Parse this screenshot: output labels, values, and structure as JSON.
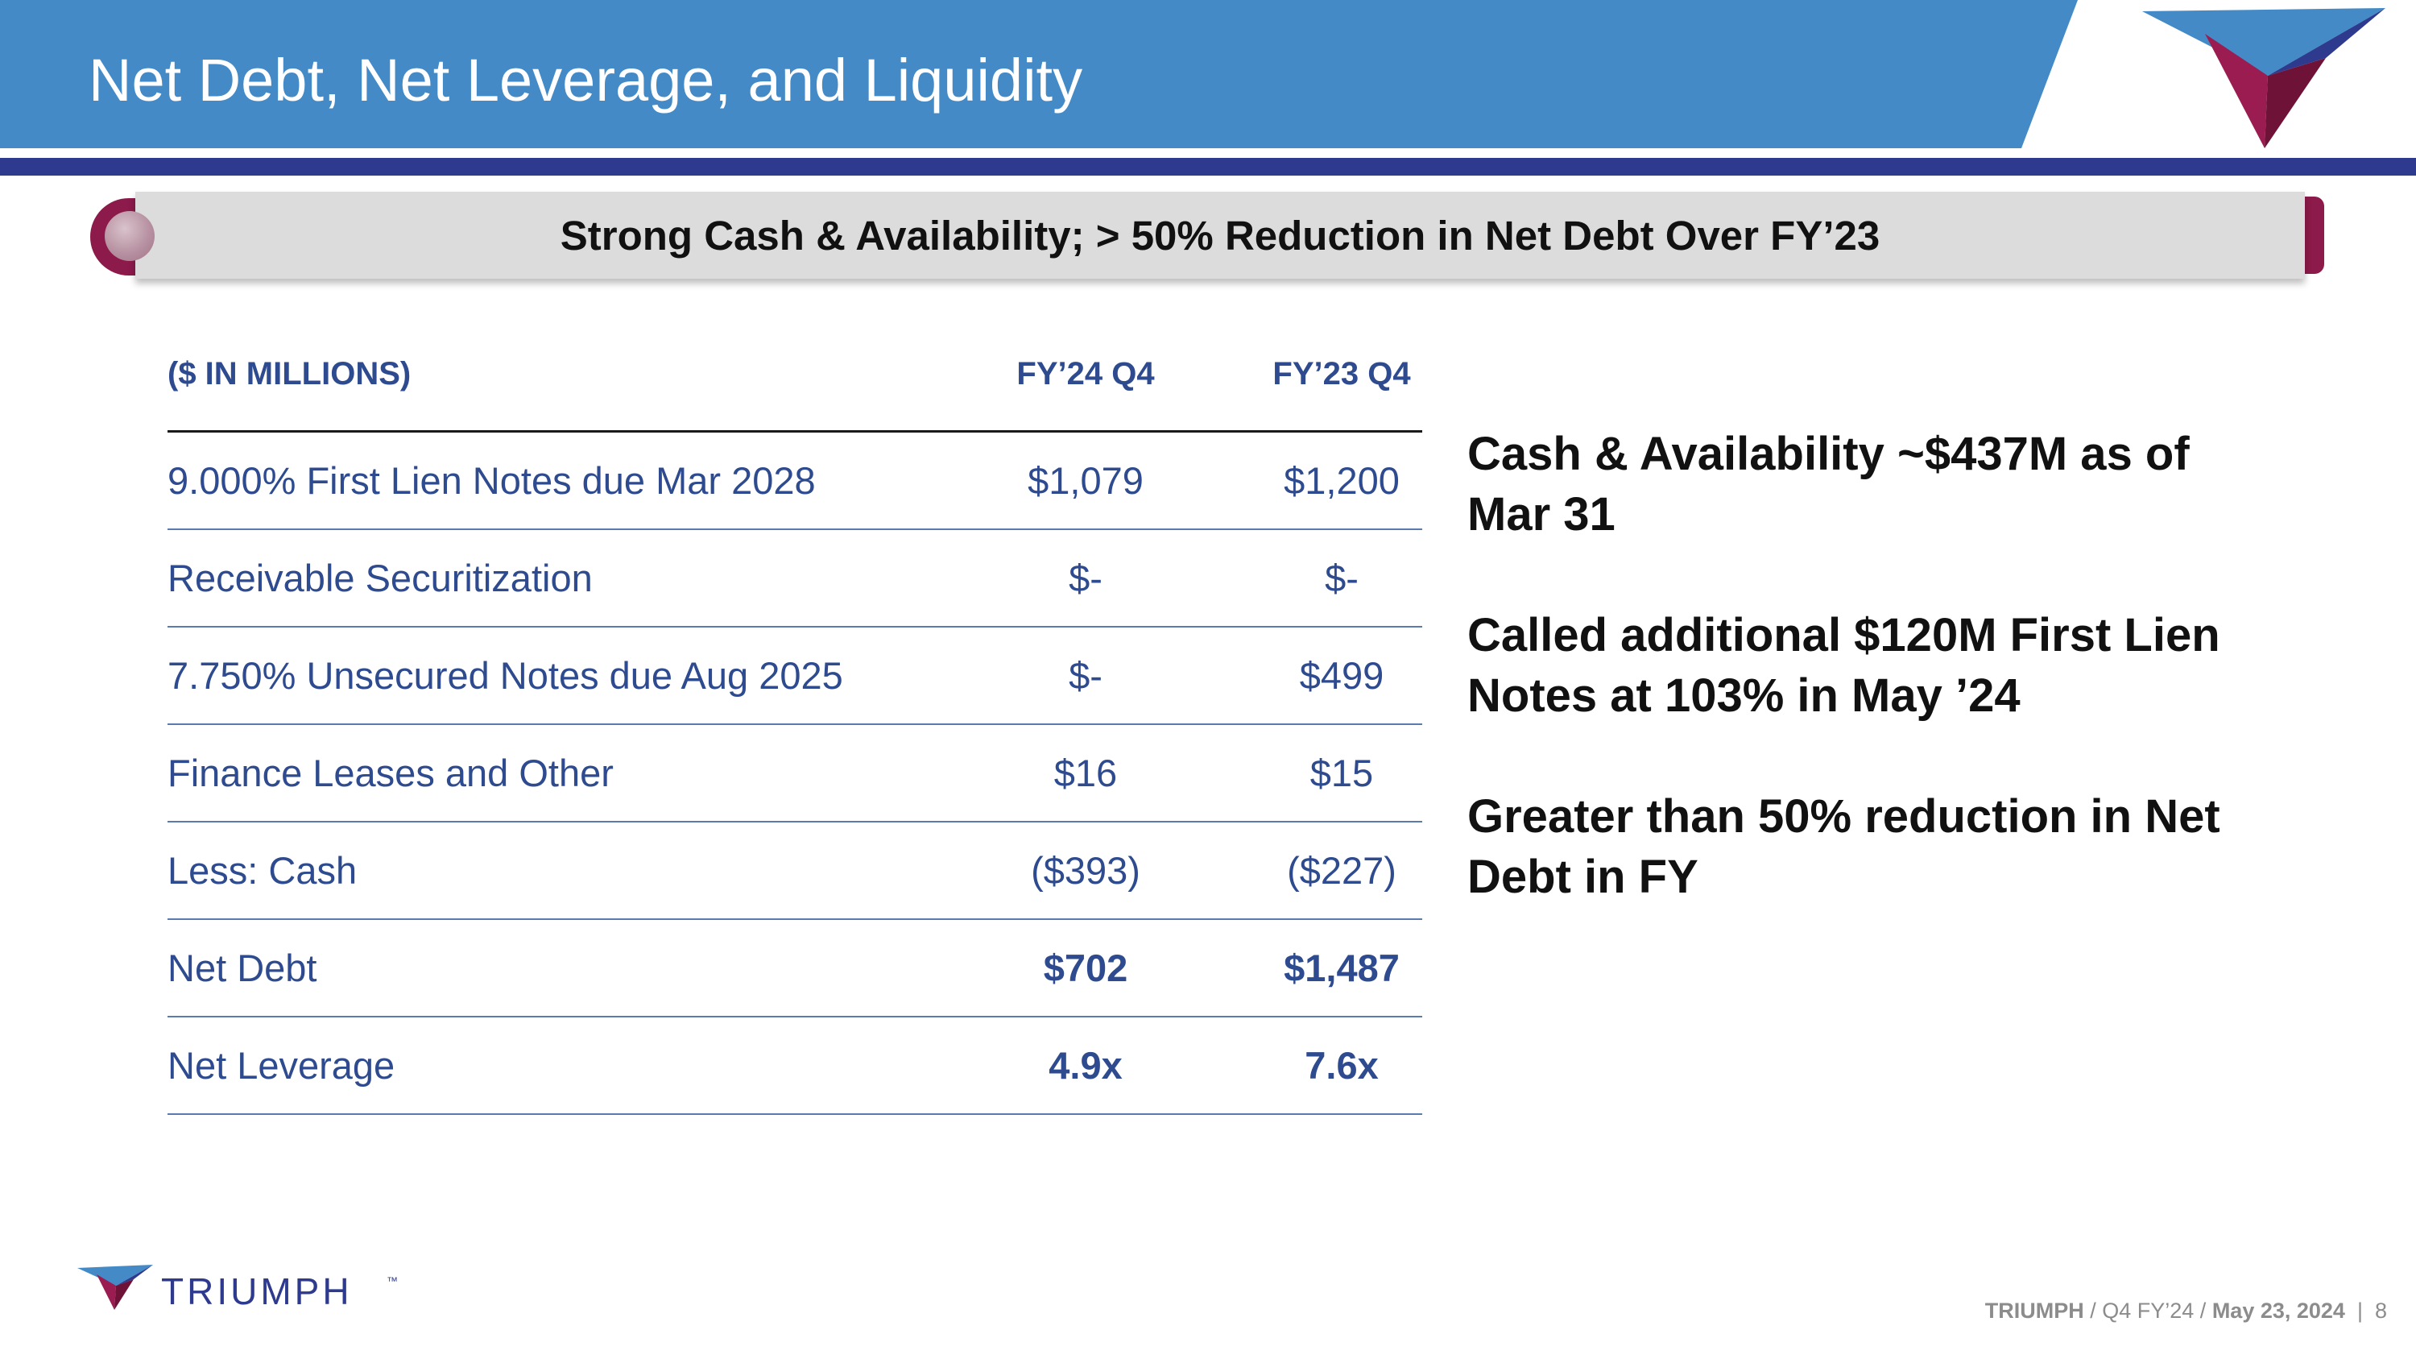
{
  "header": {
    "title": "Net Debt, Net Leverage, and Liquidity"
  },
  "banner": {
    "text": "Strong Cash & Availability; > 50% Reduction in Net Debt Over FY’23"
  },
  "table": {
    "headers": [
      "($ IN MILLIONS)",
      "FY’24 Q4",
      "FY’23 Q4"
    ],
    "rows": [
      {
        "label": "9.000% First Lien Notes due Mar 2028",
        "fy24": "$1,079",
        "fy23": "$1,200"
      },
      {
        "label": "Receivable Securitization",
        "fy24": "$-",
        "fy23": "$-"
      },
      {
        "label": "7.750% Unsecured Notes due Aug 2025",
        "fy24": "$-",
        "fy23": "$499"
      },
      {
        "label": "Finance Leases and Other",
        "fy24": "$16",
        "fy23": "$15"
      },
      {
        "label": "Less: Cash",
        "fy24": "($393)",
        "fy23": "($227)"
      },
      {
        "label": "Net Debt",
        "fy24": "$702",
        "fy23": "$1,487"
      },
      {
        "label": "Net Leverage",
        "fy24": "4.9x",
        "fy23": "7.6x"
      }
    ]
  },
  "bullets": [
    "Cash & Availability ~$437M as of Mar 31",
    "Called additional $120M First Lien Notes at 103% in May ’24",
    "Greater than 50% reduction in Net Debt in FY"
  ],
  "footer": {
    "brand": "TRIUMPH",
    "trademark": "™",
    "company": "TRIUMPH",
    "sep1": " / ",
    "period": "Q4 FY’24",
    "sep2": " / ",
    "date": "May 23, 2024",
    "sep3": "  |  ",
    "page": "8"
  },
  "colors": {
    "header_blue": "#438ac7",
    "navy": "#2d3a8e",
    "maroon": "#8c1a4a",
    "table_text": "#2e4b8f"
  }
}
